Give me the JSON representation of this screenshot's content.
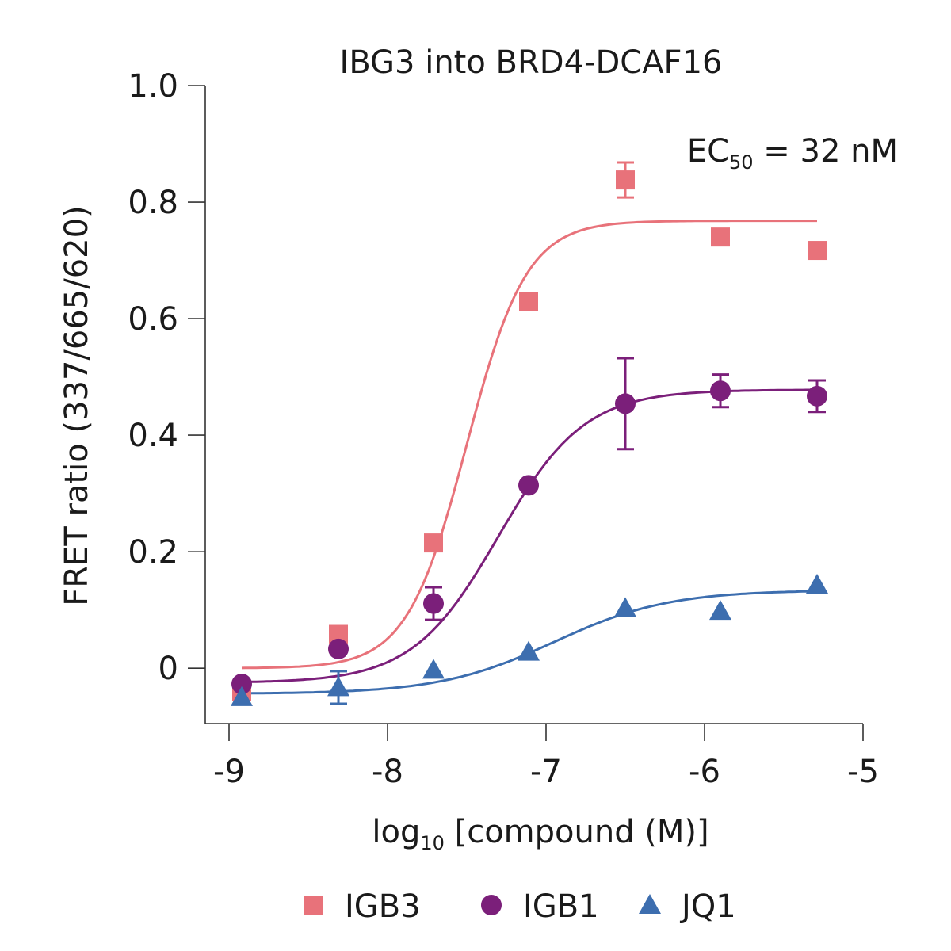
{
  "chart_data": {
    "type": "scatter",
    "title": "IBG3 into BRD4-DCAF16",
    "xlabel": {
      "main": "log",
      "sub": "10",
      "rest": " [compound (M)]"
    },
    "ylabel": "FRET ratio (337/665/620)",
    "annotation": {
      "main": "EC",
      "sub": "50",
      "rest": " = 32 nM"
    },
    "xlim": [
      -9.15,
      -5
    ],
    "ylim": [
      -0.095,
      1.0
    ],
    "x_ticks": [
      -9,
      -8,
      -7,
      -6,
      -5
    ],
    "x_tick_labels": [
      "-9",
      "-8",
      "-7",
      "-6",
      "-5"
    ],
    "y_ticks": [
      0,
      0.2,
      0.4,
      0.6,
      0.8,
      1.0
    ],
    "y_tick_labels": [
      "0",
      "0.2",
      "0.4",
      "0.6",
      "0.8",
      "1.0"
    ],
    "grid": false,
    "legend_position": "bottom",
    "series": [
      {
        "name": "IGB3",
        "marker": "square",
        "color": "#E8727A",
        "x": [
          -8.92,
          -8.31,
          -7.71,
          -7.11,
          -6.5,
          -5.9,
          -5.29
        ],
        "y": [
          -0.04,
          0.058,
          0.215,
          0.63,
          0.838,
          0.74,
          0.717
        ],
        "err": [
          0,
          0,
          0,
          0,
          0.03,
          0,
          0
        ],
        "fit": {
          "bottom": 0.0,
          "top": 0.768,
          "logec50": -7.5,
          "hill": 2.3
        }
      },
      {
        "name": "IGB1",
        "marker": "circle",
        "color": "#7B1F7A",
        "x": [
          -8.92,
          -8.31,
          -7.71,
          -7.11,
          -6.5,
          -5.9,
          -5.29
        ],
        "y": [
          -0.027,
          0.033,
          0.111,
          0.314,
          0.454,
          0.476,
          0.467
        ],
        "err": [
          0,
          0,
          0.028,
          0,
          0.078,
          0.028,
          0.027
        ],
        "fit": {
          "bottom": -0.025,
          "top": 0.478,
          "logec50": -7.3,
          "hill": 1.6
        }
      },
      {
        "name": "JQ1",
        "marker": "triangle",
        "color": "#3D6EAF",
        "x": [
          -8.92,
          -8.31,
          -7.71,
          -7.11,
          -6.5,
          -5.9,
          -5.29
        ],
        "y": [
          -0.05,
          -0.033,
          -0.003,
          0.028,
          0.103,
          0.098,
          0.143
        ],
        "err": [
          0,
          0.028,
          0,
          0,
          0,
          0,
          0
        ],
        "fit": {
          "bottom": -0.044,
          "top": 0.134,
          "logec50": -6.95,
          "hill": 1.2
        }
      }
    ]
  }
}
